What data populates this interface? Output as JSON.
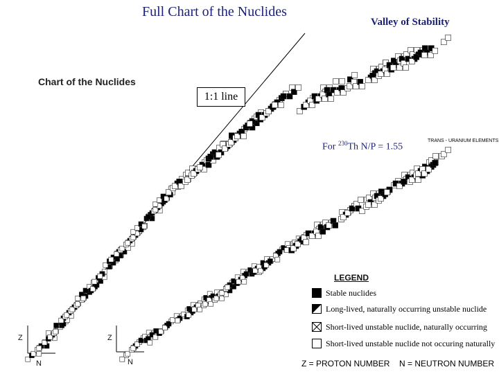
{
  "slide": {
    "title": "Full Chart of the Nuclides",
    "valley_title": "Valley of Stability",
    "chart_logo": "Chart of the Nuclides",
    "one_one_label": "1:1 line",
    "note_prefix": "For ",
    "note_mass": "230",
    "note_body": "Th N/P = 1.55",
    "trans_uranium": "TRANS - URANIUM     ELEMENTS"
  },
  "axes": {
    "z_left": "Z",
    "n_left": "N",
    "z_right": "Z",
    "n_right": "N"
  },
  "legend": {
    "title": "LEGEND",
    "items": [
      {
        "key": "stable",
        "label": "Stable nuclides"
      },
      {
        "key": "longlived",
        "label": "Long-lived, naturally occurring unstable nuclide"
      },
      {
        "key": "shortnat",
        "label": "Short-lived unstable nuclide, naturally occurring"
      },
      {
        "key": "shortunnat",
        "label": "Short-lived unstable nuclide not occuring naturally"
      }
    ],
    "z_definition": "Z = PROTON NUMBER",
    "n_definition": "N = NEUTRON NUMBER"
  },
  "colors": {
    "title": "#1a1f78",
    "ink": "#000000",
    "background": "#ffffff"
  }
}
